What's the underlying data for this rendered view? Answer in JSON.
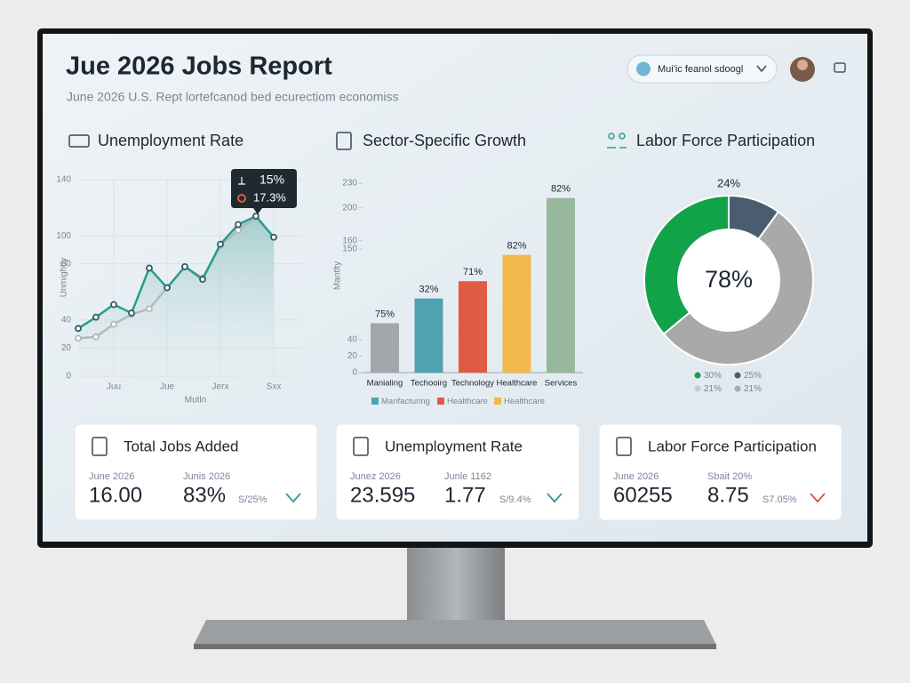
{
  "header": {
    "title": "Jue 2026 Jobs Report",
    "subtitle": "June 2026 U.S. Rept lortefcanod bed ecurectiom economiss",
    "search": "Mui'ic feanol sdoogl"
  },
  "chart_data": [
    {
      "type": "line",
      "title": "Unemployment Rate",
      "x_label": "Mutln",
      "y_label": "Unmightly",
      "categories": [
        null,
        null,
        "Juu",
        null,
        null,
        "Jue",
        null,
        null,
        "Jerx",
        null,
        null,
        "Sxx"
      ],
      "series": [
        {
          "color": "#2a9d8f",
          "values": [
            34,
            42,
            51,
            45,
            77,
            63,
            78,
            69,
            94,
            108,
            114,
            99
          ]
        },
        {
          "color": "#b4b8bc",
          "values": [
            27,
            28,
            37,
            44,
            48,
            63,
            78,
            70,
            93,
            104,
            113,
            99
          ]
        }
      ],
      "ylim": [
        0,
        140
      ],
      "yticks": [
        0,
        20,
        40,
        80,
        100,
        140
      ],
      "grid": true,
      "annotations": [
        "15%",
        "17.3%"
      ]
    },
    {
      "type": "bar",
      "title": "Sector-Specific Growth",
      "y_label": "Mantlty",
      "categories": [
        "Manialing",
        "Techooirg",
        "Technology",
        "Healthcare",
        "Services"
      ],
      "values": [
        60,
        90,
        111,
        143,
        212
      ],
      "colors": [
        "#a3a7ab",
        "#4fa3b0",
        "#e05a44",
        "#f2b84b",
        "#97b89b"
      ],
      "bar_labels": [
        "75%",
        "32%",
        "71%",
        "82%",
        "82%"
      ],
      "ylim": [
        0,
        230
      ],
      "yticks": [
        0,
        20,
        40,
        150,
        160,
        200,
        230
      ],
      "legend": [
        {
          "label": "Manfacturing",
          "color": "#4fa3b0"
        },
        {
          "label": "Healthcare",
          "color": "#e05a44"
        },
        {
          "label": "Healthcare",
          "color": "#f2b84b"
        }
      ]
    },
    {
      "type": "donut",
      "title": "Labor Force Participation",
      "values": [
        10,
        54,
        36
      ],
      "colors": [
        "#4a5d70",
        "#a9a9a9",
        "#12a24a"
      ],
      "top_label": "24%",
      "center_label": "78%",
      "legend": [
        {
          "label": "30%",
          "color": "#12a24a"
        },
        {
          "label": "25%",
          "color": "#4a5d70"
        },
        {
          "label": "21%",
          "color": "#c9c9c9"
        },
        {
          "label": "21%",
          "color": "#a9a9a9"
        }
      ]
    }
  ],
  "cards": [
    {
      "title": "Total Jobs Added",
      "items": [
        {
          "label": "June 2026",
          "value": "16.00"
        },
        {
          "label": "Junis 2026",
          "value": "83%"
        }
      ],
      "delta": "S/25%",
      "trend_color": "#2a9d8f"
    },
    {
      "title": "Unemployment Rate",
      "items": [
        {
          "label": "Junez 2026",
          "value": "23.595"
        },
        {
          "label": "Junle 1162",
          "value": "1.77"
        }
      ],
      "delta": "S/9.4%",
      "trend_color": "#2a9d8f"
    },
    {
      "title": "Labor Force Participation",
      "items": [
        {
          "label": "June 2026",
          "value": "60255"
        },
        {
          "label": "Sbait 20%",
          "value": "8.75"
        }
      ],
      "delta": "S7.05%",
      "trend_color": "#d9503f"
    }
  ]
}
